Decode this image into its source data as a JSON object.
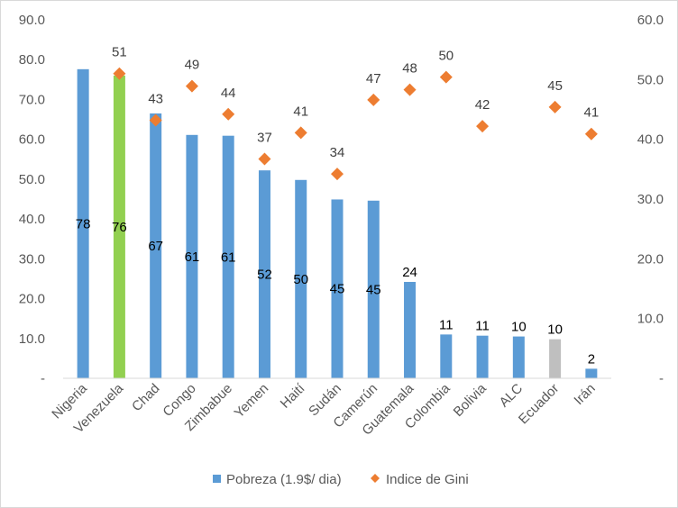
{
  "chart_data": {
    "type": "bar",
    "categories": [
      "Nigeria",
      "Venezuela",
      "Chad",
      "Congo",
      "Zimbabue",
      "Yemen",
      "Haití",
      "Sudán",
      "Camerún",
      "Guatemala",
      "Colombia",
      "Bolivia",
      "ALC",
      "Ecuador",
      "Irán"
    ],
    "series": [
      {
        "name": "Pobreza (1.9$/ dia)",
        "type": "bar",
        "axis": "left",
        "values": [
          77.6,
          76.0,
          66.5,
          61.1,
          60.9,
          52.2,
          49.8,
          44.9,
          44.6,
          24.2,
          11.0,
          10.7,
          10.5,
          9.8,
          2.4
        ],
        "data_labels": [
          "78",
          "76",
          "67",
          "61",
          "61",
          "52",
          "50",
          "45",
          "45",
          "24",
          "11",
          "11",
          "10",
          "10",
          "2"
        ],
        "color": "#5b9bd5",
        "highlight_colors": {
          "Venezuela": "#92d050",
          "Ecuador": "#bfbfbf"
        }
      },
      {
        "name": "Indice de Gini",
        "type": "scatter",
        "axis": "right",
        "values": [
          null,
          51.0,
          43.2,
          48.9,
          44.2,
          36.7,
          41.1,
          34.2,
          46.6,
          48.3,
          50.4,
          42.2,
          null,
          45.4,
          40.9
        ],
        "data_labels": [
          "",
          "51",
          "43",
          "49",
          "44",
          "37",
          "41",
          "34",
          "47",
          "48",
          "50",
          "42",
          "",
          "45",
          "41"
        ],
        "color": "#ed7d31",
        "marker": "diamond"
      }
    ],
    "y_left": {
      "min": 0,
      "max": 90,
      "step": 10,
      "tick_labels": [
        "-",
        "10.0",
        "20.0",
        "30.0",
        "40.0",
        "50.0",
        "60.0",
        "70.0",
        "80.0",
        "90.0"
      ]
    },
    "y_right": {
      "min": 0,
      "max": 60,
      "step": 10,
      "tick_labels": [
        "-",
        "10.0",
        "20.0",
        "30.0",
        "40.0",
        "50.0",
        "60.0"
      ]
    },
    "grid": false,
    "legend_position": "bottom"
  }
}
